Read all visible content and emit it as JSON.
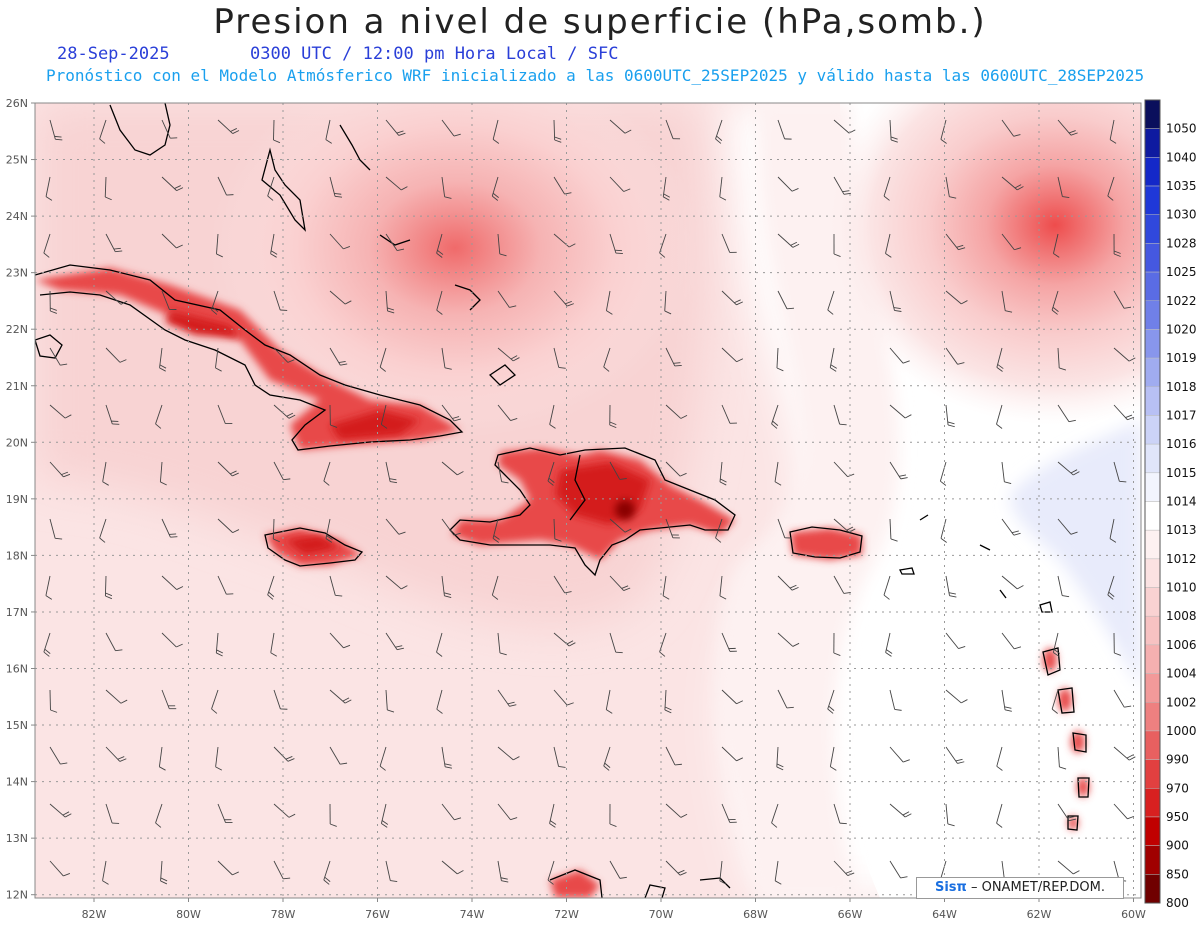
{
  "header": {
    "title": "Presion a nivel de superficie (hPa,somb.)",
    "date": "28-Sep-2025",
    "time": "0300 UTC / 12:00 pm Hora Local / SFC",
    "forecast": "Pronóstico con el Modelo Atmósferico WRF inicializado a las 0600UTC_25SEP2025 y válido hasta las  0600UTC_28SEP2025"
  },
  "map": {
    "lon_labels": [
      "82W",
      "80W",
      "78W",
      "76W",
      "74W",
      "72W",
      "70W",
      "68W",
      "66W",
      "64W",
      "62W",
      "60W"
    ],
    "lat_labels": [
      "26N",
      "25N",
      "24N",
      "23N",
      "22N",
      "21N",
      "20N",
      "19N",
      "18N",
      "17N",
      "16N",
      "15N",
      "14N",
      "13N",
      "12N"
    ],
    "grid": "dotted"
  },
  "colorbar": {
    "levels": [
      "1050",
      "1040",
      "1035",
      "1030",
      "1028",
      "1025",
      "1022",
      "1020",
      "1019",
      "1018",
      "1017",
      "1016",
      "1015",
      "1014",
      "1013",
      "1012",
      "1010",
      "1008",
      "1006",
      "1004",
      "1002",
      "1000",
      "990",
      "970",
      "950",
      "900",
      "850",
      "800"
    ],
    "colors": [
      "#0a0f5c",
      "#0e1aa0",
      "#1428c8",
      "#1f38d8",
      "#3048dc",
      "#4558e0",
      "#5a6ce4",
      "#7080e8",
      "#8896ec",
      "#a0acf0",
      "#b8c0f4",
      "#ccd3f7",
      "#e0e5fa",
      "#f2f4fd",
      "#ffffff",
      "#fdf1f1",
      "#fbe2e2",
      "#f9d2d2",
      "#f7c2c2",
      "#f5b0b0",
      "#f29a9a",
      "#ee8080",
      "#e86060",
      "#e24040",
      "#d82020",
      "#c00000",
      "#a00000",
      "#700000"
    ]
  },
  "credit": {
    "brand": "Sisπ",
    "text": "– ONAMET/REP.DOM."
  }
}
